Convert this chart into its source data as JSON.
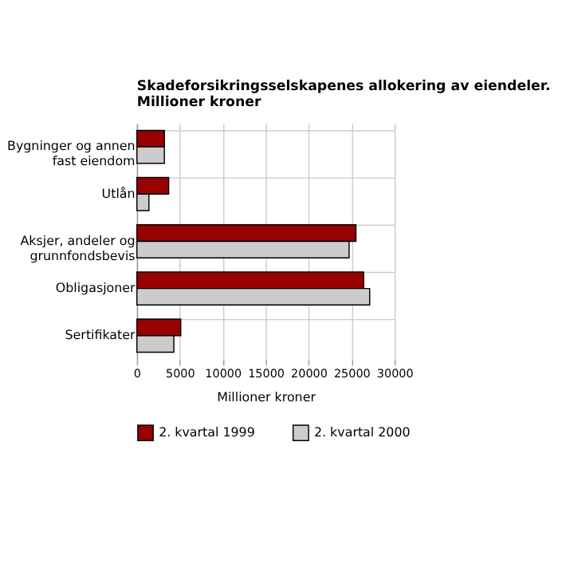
{
  "chart_data": {
    "type": "bar",
    "orientation": "horizontal",
    "title": "Skadeforsikringsselskapenes allokering av eiendeler. Millioner kroner",
    "xlabel": "Millioner kroner",
    "categories": [
      "Bygninger og annen fast eiendom",
      "Utlån",
      "Aksjer, andeler og grunnfondsbevis",
      "Obligasjoner",
      "Sertifikater"
    ],
    "series": [
      {
        "name": "2. kvartal 1999",
        "color": "#990000",
        "values": [
          3200,
          3700,
          25500,
          26400,
          5100
        ]
      },
      {
        "name": "2. kvartal 2000",
        "color": "#cccccc",
        "values": [
          3200,
          1400,
          24700,
          27100,
          4300
        ]
      }
    ],
    "xlim": [
      0,
      30000
    ],
    "xticks": [
      0,
      5000,
      10000,
      15000,
      20000,
      25000,
      30000
    ],
    "grid": true,
    "legend": "bottom"
  }
}
